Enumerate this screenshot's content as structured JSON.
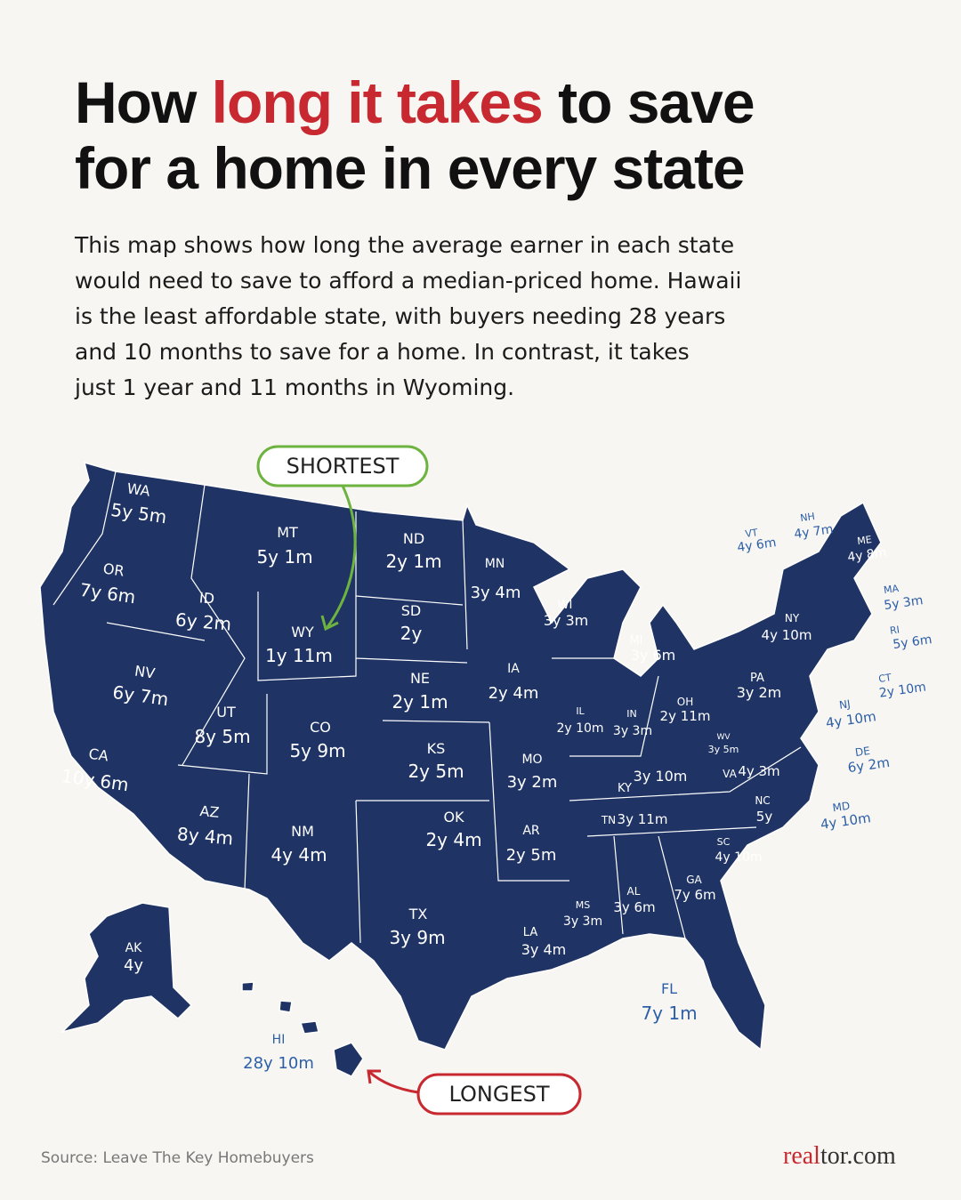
{
  "header": {
    "title": {
      "line1_start": "How",
      "highlight": "long it takes",
      "line1_end": "to save",
      "line2": "for a home in every state"
    },
    "intro": [
      "This map shows how long the average earner in each state",
      "would need to save to afford a median-priced home. Hawaii",
      "is the least affordable state, with buyers needing 28 years",
      "and 10 months to save for a home. In contrast, it takes",
      "just 1 year and 11 months in Wyoming."
    ]
  },
  "callouts": {
    "shortest": "SHORTEST",
    "longest": "LONGEST"
  },
  "states": [
    {
      "abbr": "WA",
      "value": "5y 5m"
    },
    {
      "abbr": "MT",
      "value": "5y 1m"
    },
    {
      "abbr": "ND",
      "value": "2y 1m"
    },
    {
      "abbr": "MN",
      "value": "3y 4m"
    },
    {
      "abbr": "OR",
      "value": "7y 6m"
    },
    {
      "abbr": "ID",
      "value": "6y 2m"
    },
    {
      "abbr": "SD",
      "value": "2y"
    },
    {
      "abbr": "WI",
      "value": "3y 3m"
    },
    {
      "abbr": "WY",
      "value": "1y 11m"
    },
    {
      "abbr": "MI",
      "value": "3y 6m"
    },
    {
      "abbr": "NV",
      "value": "6y 7m"
    },
    {
      "abbr": "IA",
      "value": "2y 4m"
    },
    {
      "abbr": "NE",
      "value": "2y 1m"
    },
    {
      "abbr": "UT",
      "value": "8y 5m"
    },
    {
      "abbr": "CO",
      "value": "5y 9m"
    },
    {
      "abbr": "IL",
      "value": "2y 10m"
    },
    {
      "abbr": "IN",
      "value": "3y 3m"
    },
    {
      "abbr": "OH",
      "value": "2y 11m"
    },
    {
      "abbr": "PA",
      "value": "3y 2m"
    },
    {
      "abbr": "NY",
      "value": "4y 10m"
    },
    {
      "abbr": "KS",
      "value": "2y 5m"
    },
    {
      "abbr": "MO",
      "value": "3y 2m"
    },
    {
      "abbr": "WV",
      "value": "3y 5m"
    },
    {
      "abbr": "KY",
      "value": "3y 10m"
    },
    {
      "abbr": "VA",
      "value": "4y 3m"
    },
    {
      "abbr": "CA",
      "value": "10y 6m"
    },
    {
      "abbr": "AZ",
      "value": "8y 4m"
    },
    {
      "abbr": "NM",
      "value": "4y 4m"
    },
    {
      "abbr": "OK",
      "value": "2y 4m"
    },
    {
      "abbr": "AR",
      "value": "2y 5m"
    },
    {
      "abbr": "TN",
      "value": "3y 11m"
    },
    {
      "abbr": "NC",
      "value": "5y"
    },
    {
      "abbr": "SC",
      "value": "4y 10m"
    },
    {
      "abbr": "GA",
      "value": "7y 6m"
    },
    {
      "abbr": "AL",
      "value": "3y 6m"
    },
    {
      "abbr": "MS",
      "value": "3y 3m"
    },
    {
      "abbr": "LA",
      "value": "3y 4m"
    },
    {
      "abbr": "TX",
      "value": "3y 9m"
    },
    {
      "abbr": "AK",
      "value": "4y"
    },
    {
      "abbr": "HI",
      "value": "28y 10m"
    },
    {
      "abbr": "FL",
      "value": "7y 1m"
    },
    {
      "abbr": "VT",
      "value": "4y 6m"
    },
    {
      "abbr": "NH",
      "value": "4y 7m"
    },
    {
      "abbr": "ME",
      "value": "4y 8m"
    },
    {
      "abbr": "MA",
      "value": "5y 3m"
    },
    {
      "abbr": "RI",
      "value": "5y 6m"
    },
    {
      "abbr": "CT",
      "value": "2y 10m"
    },
    {
      "abbr": "NJ",
      "value": "4y 10m"
    },
    {
      "abbr": "DE",
      "value": "6y 2m"
    },
    {
      "abbr": "MD",
      "value": "4y 10m"
    }
  ],
  "footer": {
    "source": "Source: Leave The Key Homebuyers",
    "logo": {
      "part1": "real",
      "part2": "tor.com"
    }
  }
}
